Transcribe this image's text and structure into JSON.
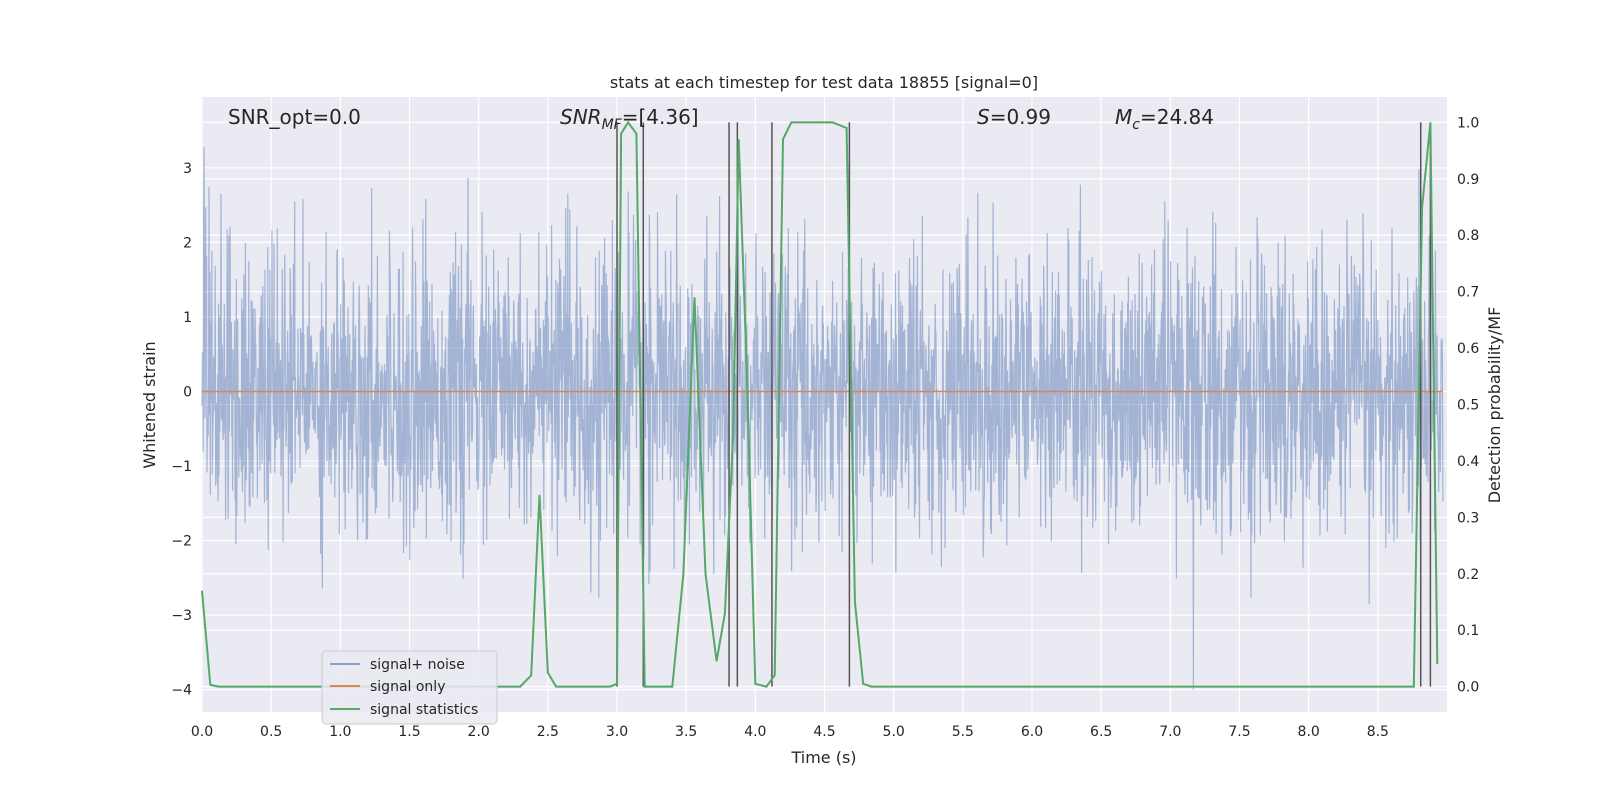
{
  "chart_data": {
    "type": "line",
    "title": "stats at each timestep for test data 18855 [signal=0]",
    "xlabel": "Time (s)",
    "ylabel": "Whitened strain",
    "y2label": "Detection probability/MF",
    "xlim": [
      0.0,
      9.0
    ],
    "ylim": [
      -4.3,
      3.95
    ],
    "y2lim": [
      -0.045,
      1.045
    ],
    "xticks": [
      "0.0",
      "0.5",
      "1.0",
      "1.5",
      "2.0",
      "2.5",
      "3.0",
      "3.5",
      "4.0",
      "4.5",
      "5.0",
      "5.5",
      "6.0",
      "6.5",
      "7.0",
      "7.5",
      "8.0",
      "8.5"
    ],
    "xtick_values": [
      0.0,
      0.5,
      1.0,
      1.5,
      2.0,
      2.5,
      3.0,
      3.5,
      4.0,
      4.5,
      5.0,
      5.5,
      6.0,
      6.5,
      7.0,
      7.5,
      8.0,
      8.5
    ],
    "yticks": [
      "−4",
      "−3",
      "−2",
      "−1",
      "0",
      "1",
      "2",
      "3"
    ],
    "ytick_values": [
      -4,
      -3,
      -2,
      -1,
      0,
      1,
      2,
      3
    ],
    "y2ticks": [
      "0.0",
      "0.1",
      "0.2",
      "0.3",
      "0.4",
      "0.5",
      "0.6",
      "0.7",
      "0.8",
      "0.9",
      "1.0"
    ],
    "y2tick_values": [
      0.0,
      0.1,
      0.2,
      0.3,
      0.4,
      0.5,
      0.6,
      0.7,
      0.8,
      0.9,
      1.0
    ],
    "grid": true,
    "legend_position": "lower-left",
    "annotations": {
      "snr_opt": "SNR_opt=0.0",
      "snr_mf_main": "SNR",
      "snr_mf_sub": "MF",
      "snr_mf_value": "=[4.36]",
      "s_sym": "S",
      "s_value": "=0.99",
      "mc_sym": "M",
      "mc_sub": "c",
      "mc_value": "=24.84"
    },
    "colors": {
      "background": "#eaeaf2",
      "grid": "#ffffff",
      "noise": "#4c72b0",
      "signal": "#dd8452",
      "stats": "#55a868",
      "vlines": "#555555"
    },
    "series": [
      {
        "name": "signal+ noise",
        "kind": "noise",
        "amplitude_sigma": 1.0,
        "y_range": [
          -4.0,
          3.6
        ],
        "description_values": "whitened noise around 0"
      },
      {
        "name": "signal only",
        "kind": "constant",
        "y": 0.0
      },
      {
        "name": "signal statistics",
        "kind": "line",
        "axis": "right",
        "x": [
          0.0,
          0.06,
          0.12,
          0.5,
          1.0,
          1.5,
          2.0,
          2.3,
          2.38,
          2.44,
          2.5,
          2.56,
          2.62,
          2.8,
          2.95,
          3.0,
          3.03,
          3.08,
          3.14,
          3.2,
          3.24,
          3.3,
          3.4,
          3.48,
          3.56,
          3.64,
          3.72,
          3.78,
          3.84,
          3.88,
          3.94,
          4.0,
          4.08,
          4.14,
          4.2,
          4.26,
          4.4,
          4.56,
          4.66,
          4.72,
          4.78,
          4.84,
          4.9,
          5.0,
          6.0,
          7.0,
          8.0,
          8.76,
          8.82,
          8.88,
          8.93
        ],
        "y": [
          0.17,
          0.003,
          0.0,
          0.0,
          0.0,
          0.0,
          0.0,
          0.0,
          0.02,
          0.34,
          0.025,
          0.0,
          0.0,
          0.0,
          0.0,
          0.005,
          0.98,
          1.0,
          0.98,
          0.0,
          0.0,
          0.0,
          0.0,
          0.2,
          0.69,
          0.2,
          0.045,
          0.13,
          0.45,
          0.97,
          0.55,
          0.005,
          0.0,
          0.02,
          0.97,
          1.0,
          1.0,
          1.0,
          0.99,
          0.15,
          0.005,
          0.0,
          0.0,
          0.0,
          0.0,
          0.0,
          0.0,
          0.0,
          0.85,
          1.0,
          0.04
        ]
      }
    ],
    "vlines_x": [
      3.0,
      3.19,
      3.81,
      3.87,
      4.12,
      4.68,
      8.81,
      8.88
    ]
  }
}
